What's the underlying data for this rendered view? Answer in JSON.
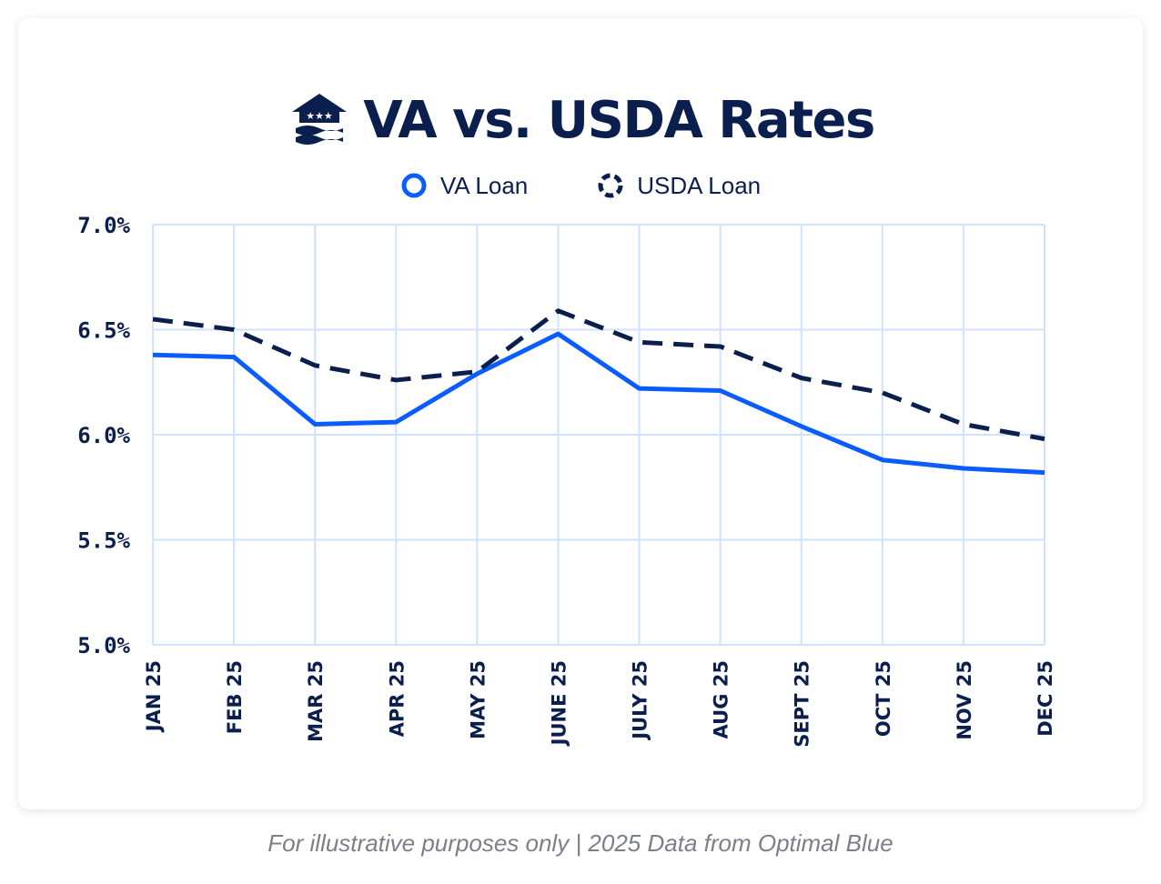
{
  "header": {
    "title": "VA vs. USDA Rates"
  },
  "legend": {
    "va_label": "VA Loan",
    "usda_label": "USDA Loan"
  },
  "caption": "For illustrative purposes only | 2025 Data from Optimal Blue",
  "colors": {
    "va": "#0b5cff",
    "usda": "#0b1f4f",
    "grid": "#cfe2ff",
    "text": "#0b1f4f"
  },
  "chart_data": {
    "type": "line",
    "title": "VA vs. USDA Rates",
    "xlabel": "",
    "ylabel": "",
    "categories": [
      "JAN 25",
      "FEB 25",
      "MAR 25",
      "APR 25",
      "MAY 25",
      "JUNE 25",
      "JULY 25",
      "AUG 25",
      "SEPT 25",
      "OCT 25",
      "NOV 25",
      "DEC 25"
    ],
    "ylim": [
      5.0,
      7.0
    ],
    "yticks": [
      5.0,
      5.5,
      6.0,
      6.5,
      7.0
    ],
    "ytick_labels": [
      "5.0%",
      "5.5%",
      "6.0%",
      "6.5%",
      "7.0%"
    ],
    "grid": true,
    "legend_position": "top-center",
    "series": [
      {
        "name": "VA Loan",
        "style": "solid",
        "values": [
          6.38,
          6.37,
          6.05,
          6.06,
          6.29,
          6.48,
          6.22,
          6.21,
          6.04,
          5.88,
          5.84,
          5.82
        ]
      },
      {
        "name": "USDA Loan",
        "style": "dashed",
        "values": [
          6.55,
          6.5,
          6.33,
          6.26,
          6.3,
          6.59,
          6.44,
          6.42,
          6.27,
          6.2,
          6.05,
          5.98
        ]
      }
    ]
  }
}
